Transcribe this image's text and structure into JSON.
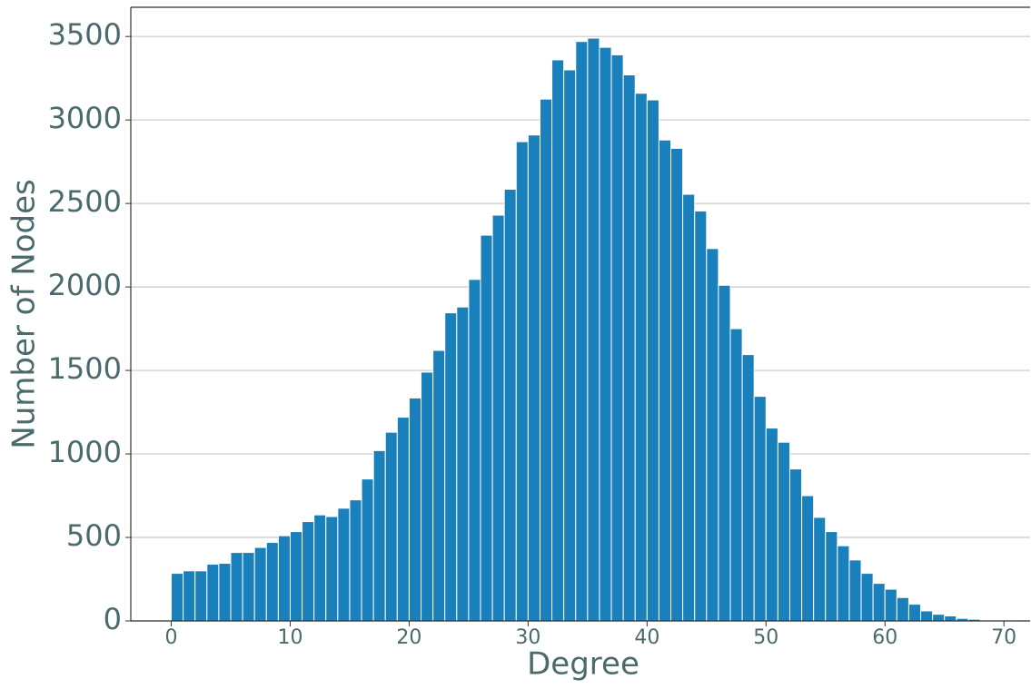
{
  "chart_data": {
    "type": "histogram",
    "xlabel": "Degree",
    "ylabel": "Number of Nodes",
    "bins": [
      0,
      1,
      2,
      3,
      4,
      5,
      6,
      7,
      8,
      9,
      10,
      11,
      12,
      13,
      14,
      15,
      16,
      17,
      18,
      19,
      20,
      21,
      22,
      23,
      24,
      25,
      26,
      27,
      28,
      29,
      30,
      31,
      32,
      33,
      34,
      35,
      36,
      37,
      38,
      39,
      40,
      41,
      42,
      43,
      44,
      45,
      46,
      47,
      48,
      49,
      50,
      51,
      52,
      53,
      54,
      55,
      56,
      57,
      58,
      59,
      60,
      61,
      62,
      63,
      64,
      65,
      66,
      67,
      68,
      69,
      70,
      71
    ],
    "values": [
      285,
      300,
      300,
      340,
      345,
      410,
      410,
      440,
      470,
      510,
      535,
      595,
      635,
      625,
      675,
      725,
      850,
      1020,
      1130,
      1220,
      1335,
      1490,
      1620,
      1845,
      1880,
      2045,
      2310,
      2430,
      2585,
      2870,
      2910,
      3125,
      3360,
      3300,
      3470,
      3490,
      3435,
      3390,
      3270,
      3160,
      3120,
      2880,
      2830,
      2555,
      2455,
      2230,
      2010,
      1750,
      1595,
      1345,
      1155,
      1070,
      910,
      750,
      620,
      535,
      450,
      365,
      285,
      225,
      190,
      140,
      100,
      60,
      40,
      30,
      15,
      10,
      5,
      3,
      2
    ],
    "color": "#1a80bb",
    "xlim": [
      -3.4,
      72.2
    ],
    "xticks": [
      0,
      10,
      20,
      30,
      40,
      50,
      60,
      70
    ],
    "ylim": [
      0,
      3675
    ],
    "yticks": [
      0,
      500,
      1000,
      1500,
      2000,
      2500,
      3000,
      3500
    ],
    "grid": true
  }
}
